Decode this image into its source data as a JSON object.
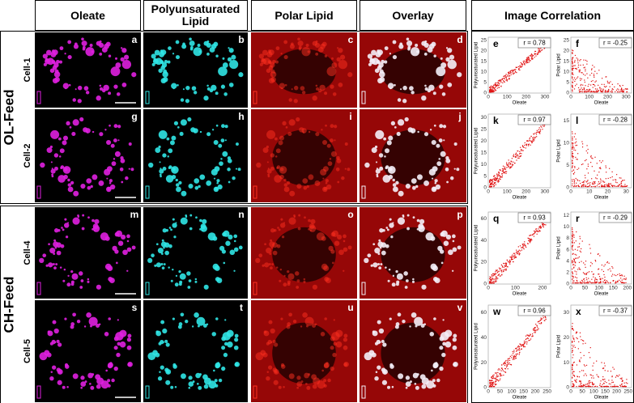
{
  "headers": [
    "Oleate",
    "Polyunsaturated Lipid",
    "Polar Lipid",
    "Overlay",
    "Image Correlation"
  ],
  "groups": [
    {
      "label": "OL-Feed",
      "rows": [
        {
          "cell": "Cell-1",
          "panels": [
            "a",
            "b",
            "c",
            "d"
          ],
          "plots": [
            {
              "letter": "e",
              "r": "r = 0.78",
              "xlabel": "Oleate",
              "ylabel": "Polyunsaturated Lipid",
              "xticks": [
                0,
                100,
                200,
                300
              ],
              "yticks": [
                0,
                5,
                10,
                15,
                20,
                25
              ]
            },
            {
              "letter": "f",
              "r": "r = -0.25",
              "xlabel": "Oleate",
              "ylabel": "Polar Lipid",
              "xticks": [
                0,
                100,
                200,
                300
              ],
              "yticks": [
                0,
                5,
                10,
                15,
                20,
                25
              ]
            }
          ]
        },
        {
          "cell": "Cell-2",
          "panels": [
            "g",
            "h",
            "i",
            "j"
          ],
          "plots": [
            {
              "letter": "k",
              "r": "r = 0.97",
              "xlabel": "Oleate",
              "ylabel": "Polyunsaturated Lipid",
              "xticks": [
                0,
                100,
                200,
                300
              ],
              "yticks": [
                0,
                5,
                10,
                15,
                20,
                25,
                30
              ]
            },
            {
              "letter": "l",
              "r": "r = -0.28",
              "xlabel": "Oleate",
              "ylabel": "Polar Lipid",
              "xticks": [
                0,
                10,
                20,
                30
              ],
              "yticks": [
                0,
                5,
                10,
                15
              ]
            }
          ]
        }
      ]
    },
    {
      "label": "CH-Feed",
      "rows": [
        {
          "cell": "Cell-4",
          "panels": [
            "m",
            "n",
            "o",
            "p"
          ],
          "plots": [
            {
              "letter": "q",
              "r": "r = 0.93",
              "xlabel": "Oleate",
              "ylabel": "Polyunsaturated Lipid",
              "xticks": [
                0,
                100,
                200
              ],
              "yticks": [
                0,
                20,
                40,
                60
              ]
            },
            {
              "letter": "r",
              "r": "r = -0.29",
              "xlabel": "Oleate",
              "ylabel": "Polar Lipid",
              "xticks": [
                0,
                50,
                100,
                150,
                200
              ],
              "yticks": [
                0,
                2,
                4,
                6,
                8,
                10,
                12
              ]
            }
          ]
        },
        {
          "cell": "Cell-5",
          "panels": [
            "s",
            "t",
            "u",
            "v"
          ],
          "plots": [
            {
              "letter": "w",
              "r": "r = 0.96",
              "xlabel": "Oleate",
              "ylabel": "Polyunsaturated Lipid",
              "xticks": [
                0,
                50,
                100,
                150,
                200,
                250
              ],
              "yticks": [
                0,
                20,
                40,
                60
              ]
            },
            {
              "letter": "x",
              "r": "r = -0.37",
              "xlabel": "Oleate",
              "ylabel": "Polar Lipid",
              "xticks": [
                0,
                50,
                100,
                150,
                200,
                250
              ],
              "yticks": [
                0,
                10,
                20,
                30
              ]
            }
          ]
        }
      ]
    }
  ]
}
